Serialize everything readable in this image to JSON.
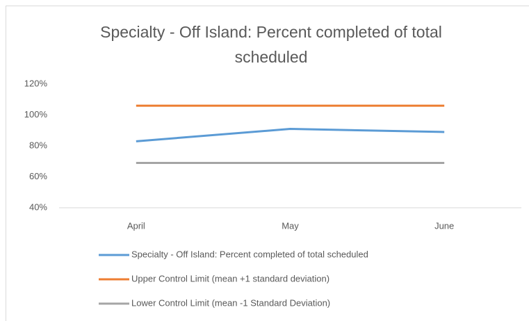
{
  "chart_data": {
    "type": "line",
    "title": "Specialty - Off Island: Percent completed of total scheduled",
    "categories": [
      "April",
      "May",
      "June"
    ],
    "series": [
      {
        "name": "Specialty - Off Island: Percent completed of total scheduled",
        "color": "#5b9bd5",
        "values": [
          83,
          91,
          89
        ]
      },
      {
        "name": "Upper Control Limit (mean +1 standard deviation)",
        "color": "#ed7d31",
        "values": [
          106,
          106,
          106
        ]
      },
      {
        "name": "Lower Control Limit (mean -1 Standard Deviation)",
        "color": "#a5a5a5",
        "values": [
          69,
          69,
          69
        ]
      }
    ],
    "ylim": [
      40,
      120
    ],
    "yticks": [
      {
        "value": 40,
        "label": "40%"
      },
      {
        "value": 60,
        "label": "60%"
      },
      {
        "value": 80,
        "label": "80%"
      },
      {
        "value": 100,
        "label": "100%"
      },
      {
        "value": 120,
        "label": "120%"
      }
    ],
    "grid": false,
    "legend": "bottom"
  }
}
